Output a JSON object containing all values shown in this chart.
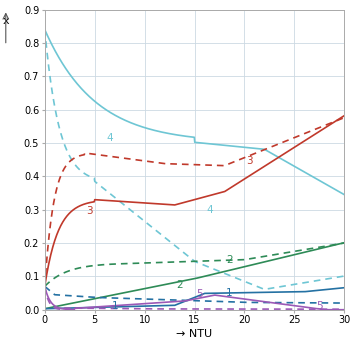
{
  "xlabel": "→ NTU",
  "ylabel": "x",
  "xlim": [
    0,
    30
  ],
  "ylim": [
    0,
    0.9
  ],
  "yticks": [
    0,
    0.1,
    0.2,
    0.3,
    0.4,
    0.5,
    0.6,
    0.7,
    0.8,
    0.9
  ],
  "xticks": [
    0,
    5,
    10,
    15,
    20,
    25,
    30
  ],
  "grid_color": "#ccd9e3",
  "colors": {
    "cyan": "#6ec6d4",
    "red": "#c0392b",
    "green": "#2e8b57",
    "blue": "#2471a3",
    "purple": "#9b59b6"
  }
}
